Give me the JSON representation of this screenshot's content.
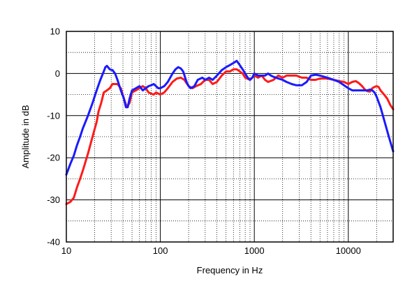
{
  "chart_data": {
    "type": "line",
    "title": "",
    "xlabel": "Frequency  in Hz",
    "ylabel": "Amplitude in dB",
    "xscale": "log",
    "xlim": [
      10,
      30000
    ],
    "ylim": [
      -40,
      10
    ],
    "grid": true,
    "xticks": [
      {
        "value": 10,
        "label": "10"
      },
      {
        "value": 100,
        "label": "100"
      },
      {
        "value": 1000,
        "label": "1000"
      },
      {
        "value": 10000,
        "label": "10000"
      }
    ],
    "yticks": [
      {
        "value": 10,
        "label": "10"
      },
      {
        "value": 0,
        "label": "0"
      },
      {
        "value": -10,
        "label": "-10"
      },
      {
        "value": -20,
        "label": "-20"
      },
      {
        "value": -30,
        "label": "-30"
      },
      {
        "value": -40,
        "label": "-40"
      }
    ],
    "series": [
      {
        "color": "#ff1a1a",
        "points": [
          [
            10,
            -31
          ],
          [
            11,
            -30.5
          ],
          [
            12,
            -29.5
          ],
          [
            13,
            -27
          ],
          [
            14,
            -25
          ],
          [
            15,
            -23
          ],
          [
            17,
            -19
          ],
          [
            19,
            -15
          ],
          [
            21,
            -11.5
          ],
          [
            22,
            -9
          ],
          [
            23.5,
            -7
          ],
          [
            25,
            -4.5
          ],
          [
            27,
            -4
          ],
          [
            29,
            -3.5
          ],
          [
            31,
            -2.5
          ],
          [
            35,
            -2.5
          ],
          [
            38,
            -3.5
          ],
          [
            41,
            -6
          ],
          [
            44,
            -8
          ],
          [
            47,
            -7
          ],
          [
            50,
            -4.5
          ],
          [
            55,
            -4
          ],
          [
            60,
            -3.5
          ],
          [
            65,
            -3
          ],
          [
            70,
            -3.5
          ],
          [
            75,
            -4.5
          ],
          [
            80,
            -4.8
          ],
          [
            85,
            -5
          ],
          [
            90,
            -4.5
          ],
          [
            100,
            -5
          ],
          [
            110,
            -4.5
          ],
          [
            120,
            -3.5
          ],
          [
            135,
            -2
          ],
          [
            150,
            -1.2
          ],
          [
            165,
            -1
          ],
          [
            180,
            -1.5
          ],
          [
            200,
            -3
          ],
          [
            220,
            -3.5
          ],
          [
            240,
            -3
          ],
          [
            270,
            -2.5
          ],
          [
            300,
            -1.5
          ],
          [
            330,
            -1.5
          ],
          [
            360,
            -2.5
          ],
          [
            400,
            -2
          ],
          [
            450,
            -0.5
          ],
          [
            500,
            0.5
          ],
          [
            550,
            0.5
          ],
          [
            600,
            1
          ],
          [
            650,
            1
          ],
          [
            700,
            0.5
          ],
          [
            750,
            0
          ],
          [
            800,
            -1
          ],
          [
            900,
            -1.5
          ],
          [
            1000,
            -0.5
          ],
          [
            1100,
            -1
          ],
          [
            1200,
            -0.5
          ],
          [
            1300,
            -1.5
          ],
          [
            1400,
            -2
          ],
          [
            1600,
            -1.5
          ],
          [
            1800,
            -0.5
          ],
          [
            2000,
            -1
          ],
          [
            2200,
            -0.5
          ],
          [
            2500,
            -0.5
          ],
          [
            2800,
            -0.5
          ],
          [
            3200,
            -1
          ],
          [
            3600,
            -1
          ],
          [
            4000,
            -1.5
          ],
          [
            4500,
            -1.5
          ],
          [
            5000,
            -1.2
          ],
          [
            6000,
            -1.2
          ],
          [
            7000,
            -1.5
          ],
          [
            8000,
            -1.8
          ],
          [
            9000,
            -2
          ],
          [
            10000,
            -2.5
          ],
          [
            11000,
            -2
          ],
          [
            12000,
            -1.8
          ],
          [
            13000,
            -2.3
          ],
          [
            14000,
            -3
          ],
          [
            15000,
            -3.8
          ],
          [
            16000,
            -4.2
          ],
          [
            17000,
            -4.3
          ],
          [
            18000,
            -3.5
          ],
          [
            19000,
            -3.2
          ],
          [
            20000,
            -3
          ],
          [
            21000,
            -3.2
          ],
          [
            22000,
            -4
          ],
          [
            24000,
            -5
          ],
          [
            26000,
            -6
          ],
          [
            28000,
            -7.5
          ],
          [
            30000,
            -8.5
          ]
        ]
      },
      {
        "color": "#1a1aff",
        "points": [
          [
            10,
            -24
          ],
          [
            11,
            -21.5
          ],
          [
            12,
            -19.5
          ],
          [
            13,
            -17
          ],
          [
            14,
            -15
          ],
          [
            15,
            -13
          ],
          [
            17,
            -10
          ],
          [
            19,
            -7
          ],
          [
            21,
            -4
          ],
          [
            23,
            -1.5
          ],
          [
            25,
            0.5
          ],
          [
            26,
            1.5
          ],
          [
            27,
            1.8
          ],
          [
            29,
            1
          ],
          [
            31,
            0.8
          ],
          [
            33,
            0
          ],
          [
            35,
            -1.5
          ],
          [
            38,
            -4
          ],
          [
            41,
            -6
          ],
          [
            43,
            -8
          ],
          [
            45,
            -8
          ],
          [
            47,
            -6
          ],
          [
            50,
            -4
          ],
          [
            55,
            -3.5
          ],
          [
            60,
            -3
          ],
          [
            65,
            -4
          ],
          [
            70,
            -3.5
          ],
          [
            75,
            -3
          ],
          [
            80,
            -2.8
          ],
          [
            85,
            -2.5
          ],
          [
            90,
            -3
          ],
          [
            95,
            -3.5
          ],
          [
            100,
            -3.5
          ],
          [
            110,
            -3
          ],
          [
            120,
            -2
          ],
          [
            135,
            0
          ],
          [
            145,
            1
          ],
          [
            155,
            1.5
          ],
          [
            165,
            1.2
          ],
          [
            175,
            0.5
          ],
          [
            190,
            -2
          ],
          [
            200,
            -3
          ],
          [
            210,
            -3.5
          ],
          [
            230,
            -3
          ],
          [
            250,
            -1.5
          ],
          [
            280,
            -1
          ],
          [
            300,
            -1.5
          ],
          [
            330,
            -1
          ],
          [
            360,
            -1.5
          ],
          [
            400,
            -0.5
          ],
          [
            450,
            0.8
          ],
          [
            500,
            1.5
          ],
          [
            550,
            2
          ],
          [
            600,
            2.5
          ],
          [
            650,
            3
          ],
          [
            700,
            2
          ],
          [
            750,
            1
          ],
          [
            800,
            0
          ],
          [
            850,
            -1
          ],
          [
            900,
            -1.5
          ],
          [
            950,
            -1
          ],
          [
            1000,
            0
          ],
          [
            1100,
            -0.5
          ],
          [
            1200,
            -0.5
          ],
          [
            1300,
            -0.5
          ],
          [
            1400,
            0
          ],
          [
            1500,
            -0.5
          ],
          [
            1600,
            -0.8
          ],
          [
            1800,
            -1.2
          ],
          [
            2000,
            -1.5
          ],
          [
            2200,
            -2
          ],
          [
            2500,
            -2.5
          ],
          [
            2800,
            -2.8
          ],
          [
            3200,
            -2.8
          ],
          [
            3600,
            -2
          ],
          [
            4000,
            -0.5
          ],
          [
            4500,
            -0.3
          ],
          [
            5000,
            -0.5
          ],
          [
            6000,
            -1
          ],
          [
            7000,
            -1.5
          ],
          [
            8000,
            -2
          ],
          [
            9000,
            -2.8
          ],
          [
            10000,
            -3.5
          ],
          [
            11000,
            -4
          ],
          [
            12000,
            -4
          ],
          [
            14000,
            -4
          ],
          [
            16000,
            -4
          ],
          [
            17000,
            -3.8
          ],
          [
            18000,
            -4
          ],
          [
            19000,
            -4.5
          ],
          [
            20000,
            -5.5
          ],
          [
            22000,
            -8
          ],
          [
            24000,
            -11
          ],
          [
            27000,
            -15
          ],
          [
            30000,
            -18.5
          ]
        ]
      }
    ]
  }
}
